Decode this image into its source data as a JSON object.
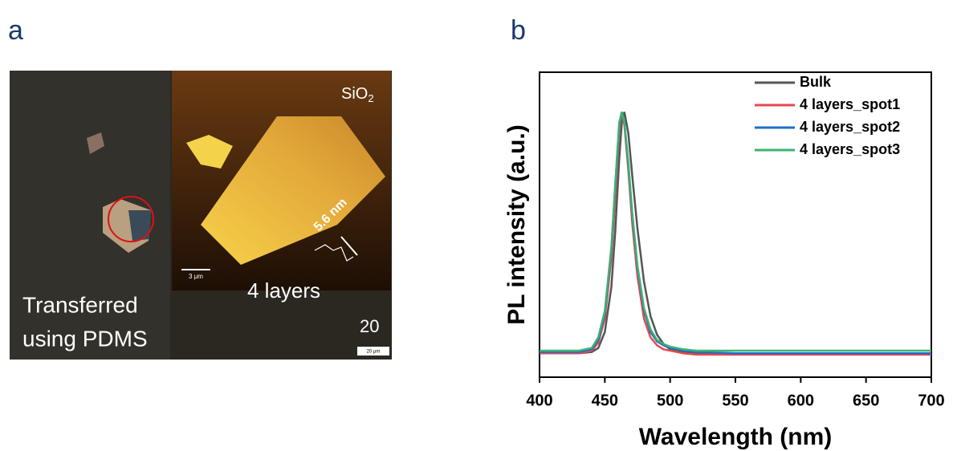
{
  "panel_a": {
    "label": "a",
    "substrate": "SiO",
    "substrate_sub": "2",
    "height_label": "5.6 nm",
    "layers_label": "4 layers",
    "caption": [
      "Transferred",
      "using PDMS"
    ],
    "magnification": "20",
    "scale_bar_inner": "3 μm",
    "scale_bar_outer": "20 μm"
  },
  "panel_b": {
    "label": "b"
  },
  "chart_data": {
    "type": "line",
    "x_label": "Wavelength (nm)",
    "y_label": "PL intensity (a.u.)",
    "x": [
      400,
      420,
      430,
      440,
      445,
      450,
      455,
      458,
      461,
      463,
      465,
      468,
      471,
      475,
      480,
      485,
      490,
      495,
      500,
      510,
      520,
      550,
      600,
      650,
      700
    ],
    "series": [
      {
        "name": "Bulk",
        "color": "#555555",
        "values": [
          0.09,
          0.09,
          0.09,
          0.095,
          0.11,
          0.17,
          0.34,
          0.55,
          0.82,
          0.96,
          1.0,
          0.92,
          0.76,
          0.56,
          0.36,
          0.23,
          0.16,
          0.125,
          0.105,
          0.095,
          0.09,
          0.09,
          0.09,
          0.09,
          0.09
        ]
      },
      {
        "name": "4 layers_spot1",
        "color": "#e8474d",
        "values": [
          0.09,
          0.09,
          0.09,
          0.1,
          0.13,
          0.22,
          0.45,
          0.68,
          0.93,
          1.0,
          0.95,
          0.78,
          0.58,
          0.38,
          0.22,
          0.15,
          0.12,
          0.105,
          0.1,
          0.09,
          0.085,
          0.085,
          0.085,
          0.085,
          0.085
        ]
      },
      {
        "name": "4 layers_spot2",
        "color": "#1f6fc8",
        "values": [
          0.095,
          0.095,
          0.095,
          0.105,
          0.14,
          0.24,
          0.48,
          0.72,
          0.95,
          1.0,
          0.96,
          0.8,
          0.61,
          0.41,
          0.25,
          0.17,
          0.135,
          0.12,
          0.11,
          0.1,
          0.095,
          0.09,
          0.09,
          0.09,
          0.09
        ]
      },
      {
        "name": "4 layers_spot3",
        "color": "#3bb273",
        "values": [
          0.1,
          0.1,
          0.1,
          0.11,
          0.15,
          0.25,
          0.49,
          0.73,
          0.96,
          1.0,
          0.96,
          0.81,
          0.62,
          0.42,
          0.26,
          0.18,
          0.14,
          0.125,
          0.115,
          0.105,
          0.1,
          0.1,
          0.1,
          0.1,
          0.1
        ]
      }
    ],
    "xlim": [
      400,
      700
    ],
    "xticks": [
      400,
      450,
      500,
      550,
      600,
      650,
      700
    ],
    "ylim": [
      0,
      1.15
    ],
    "legend": "upper right"
  }
}
